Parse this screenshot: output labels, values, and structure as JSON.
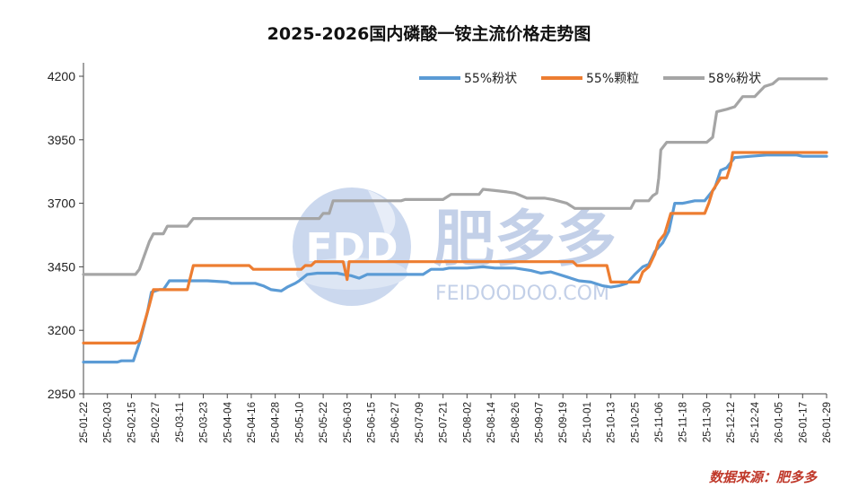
{
  "chart_data": {
    "type": "line",
    "title": "2025-2026国内磷酸一铵主流价格走势图",
    "ylim": [
      2950,
      4200
    ],
    "yticks": [
      2950,
      3200,
      3450,
      3700,
      3950,
      4200
    ],
    "xticks": [
      "25-01-22",
      "25-02-03",
      "25-02-15",
      "25-02-27",
      "25-03-11",
      "25-03-23",
      "25-04-04",
      "25-04-16",
      "25-04-28",
      "25-05-10",
      "25-05-22",
      "25-06-03",
      "25-06-15",
      "25-06-27",
      "25-07-09",
      "25-07-21",
      "25-08-02",
      "25-08-14",
      "25-08-26",
      "25-09-07",
      "25-09-19",
      "25-10-01",
      "25-10-13",
      "25-10-25",
      "25-11-06",
      "25-11-18",
      "25-11-30",
      "25-12-12",
      "25-12-24",
      "26-01-05",
      "26-01-17",
      "26-01-29"
    ],
    "grid": false,
    "legend_position": "top-right",
    "series": [
      {
        "name": "55%粉状",
        "color": "#5b9bd5",
        "points": [
          [
            "25-01-22",
            3075
          ],
          [
            "25-02-08",
            3075
          ],
          [
            "25-02-10",
            3080
          ],
          [
            "25-02-16",
            3080
          ],
          [
            "25-02-19",
            3150
          ],
          [
            "25-02-23",
            3270
          ],
          [
            "25-02-25",
            3350
          ],
          [
            "25-03-01",
            3360
          ],
          [
            "25-03-03",
            3360
          ],
          [
            "25-03-06",
            3395
          ],
          [
            "25-03-20",
            3395
          ],
          [
            "25-03-25",
            3395
          ],
          [
            "25-04-04",
            3390
          ],
          [
            "25-04-06",
            3385
          ],
          [
            "25-04-18",
            3385
          ],
          [
            "25-04-22",
            3375
          ],
          [
            "25-04-26",
            3360
          ],
          [
            "25-05-01",
            3355
          ],
          [
            "25-05-04",
            3370
          ],
          [
            "25-05-08",
            3385
          ],
          [
            "25-05-10",
            3395
          ],
          [
            "25-05-14",
            3420
          ],
          [
            "25-05-19",
            3425
          ],
          [
            "25-05-29",
            3425
          ],
          [
            "25-06-01",
            3420
          ],
          [
            "25-06-05",
            3415
          ],
          [
            "25-06-09",
            3405
          ],
          [
            "25-06-13",
            3420
          ],
          [
            "25-06-16",
            3420
          ],
          [
            "25-06-28",
            3420
          ],
          [
            "25-07-11",
            3420
          ],
          [
            "25-07-15",
            3440
          ],
          [
            "25-07-21",
            3440
          ],
          [
            "25-07-24",
            3445
          ],
          [
            "25-08-02",
            3445
          ],
          [
            "25-08-10",
            3450
          ],
          [
            "25-08-16",
            3445
          ],
          [
            "25-08-26",
            3445
          ],
          [
            "25-09-03",
            3435
          ],
          [
            "25-09-08",
            3425
          ],
          [
            "25-09-13",
            3430
          ],
          [
            "25-09-17",
            3420
          ],
          [
            "25-09-21",
            3410
          ],
          [
            "25-09-27",
            3395
          ],
          [
            "25-10-03",
            3390
          ],
          [
            "25-10-09",
            3375
          ],
          [
            "25-10-13",
            3370
          ],
          [
            "25-10-17",
            3375
          ],
          [
            "25-10-21",
            3385
          ],
          [
            "25-10-25",
            3420
          ],
          [
            "25-10-29",
            3450
          ],
          [
            "25-11-01",
            3460
          ],
          [
            "25-11-04",
            3510
          ],
          [
            "25-11-08",
            3545
          ],
          [
            "25-11-11",
            3590
          ],
          [
            "25-11-14",
            3700
          ],
          [
            "25-11-18",
            3700
          ],
          [
            "25-11-24",
            3710
          ],
          [
            "25-11-29",
            3710
          ],
          [
            "25-12-01",
            3730
          ],
          [
            "25-12-04",
            3760
          ],
          [
            "25-12-07",
            3830
          ],
          [
            "25-12-10",
            3840
          ],
          [
            "25-12-14",
            3880
          ],
          [
            "25-12-22",
            3885
          ],
          [
            "25-12-30",
            3890
          ],
          [
            "26-01-14",
            3890
          ],
          [
            "26-01-17",
            3885
          ],
          [
            "26-01-20",
            3885
          ],
          [
            "26-01-29",
            3885
          ]
        ]
      },
      {
        "name": "55%颗粒",
        "color": "#ed7d31",
        "points": [
          [
            "25-01-22",
            3150
          ],
          [
            "25-02-17",
            3150
          ],
          [
            "25-02-19",
            3160
          ],
          [
            "25-02-24",
            3300
          ],
          [
            "25-02-26",
            3360
          ],
          [
            "25-03-06",
            3360
          ],
          [
            "25-03-13",
            3360
          ],
          [
            "25-03-15",
            3360
          ],
          [
            "25-03-18",
            3455
          ],
          [
            "25-04-15",
            3455
          ],
          [
            "25-04-17",
            3440
          ],
          [
            "25-05-11",
            3440
          ],
          [
            "25-05-13",
            3455
          ],
          [
            "25-05-16",
            3455
          ],
          [
            "25-05-18",
            3470
          ],
          [
            "25-06-01",
            3470
          ],
          [
            "25-06-03",
            3400
          ],
          [
            "25-06-04",
            3470
          ],
          [
            "25-09-24",
            3470
          ],
          [
            "25-09-26",
            3455
          ],
          [
            "25-10-11",
            3455
          ],
          [
            "25-10-13",
            3390
          ],
          [
            "25-10-27",
            3390
          ],
          [
            "25-10-29",
            3430
          ],
          [
            "25-11-01",
            3450
          ],
          [
            "25-11-04",
            3500
          ],
          [
            "25-11-06",
            3550
          ],
          [
            "25-11-09",
            3580
          ],
          [
            "25-11-12",
            3660
          ],
          [
            "25-11-24",
            3660
          ],
          [
            "25-11-29",
            3660
          ],
          [
            "25-12-01",
            3700
          ],
          [
            "25-12-03",
            3750
          ],
          [
            "25-12-07",
            3800
          ],
          [
            "25-12-10",
            3800
          ],
          [
            "25-12-12",
            3850
          ],
          [
            "25-12-13",
            3900
          ],
          [
            "26-01-29",
            3900
          ]
        ]
      },
      {
        "name": "58%粉状",
        "color": "#a5a5a5",
        "points": [
          [
            "25-01-22",
            3420
          ],
          [
            "25-02-17",
            3420
          ],
          [
            "25-02-19",
            3440
          ],
          [
            "25-02-24",
            3550
          ],
          [
            "25-02-26",
            3580
          ],
          [
            "25-03-03",
            3580
          ],
          [
            "25-03-05",
            3610
          ],
          [
            "25-03-12",
            3610
          ],
          [
            "25-03-15",
            3610
          ],
          [
            "25-03-18",
            3640
          ],
          [
            "25-05-20",
            3640
          ],
          [
            "25-05-22",
            3660
          ],
          [
            "25-05-25",
            3660
          ],
          [
            "25-05-27",
            3710
          ],
          [
            "25-06-30",
            3710
          ],
          [
            "25-07-02",
            3715
          ],
          [
            "25-07-21",
            3715
          ],
          [
            "25-07-25",
            3735
          ],
          [
            "25-08-08",
            3735
          ],
          [
            "25-08-10",
            3755
          ],
          [
            "25-08-16",
            3750
          ],
          [
            "25-08-22",
            3745
          ],
          [
            "25-08-26",
            3740
          ],
          [
            "25-09-01",
            3720
          ],
          [
            "25-09-10",
            3720
          ],
          [
            "25-09-14",
            3715
          ],
          [
            "25-09-21",
            3700
          ],
          [
            "25-09-25",
            3680
          ],
          [
            "25-10-23",
            3680
          ],
          [
            "25-10-25",
            3710
          ],
          [
            "25-11-01",
            3710
          ],
          [
            "25-11-03",
            3730
          ],
          [
            "25-11-05",
            3740
          ],
          [
            "25-11-06",
            3800
          ],
          [
            "25-11-07",
            3910
          ],
          [
            "25-11-10",
            3940
          ],
          [
            "25-11-30",
            3940
          ],
          [
            "25-12-03",
            3960
          ],
          [
            "25-12-05",
            4060
          ],
          [
            "25-12-10",
            4070
          ],
          [
            "25-12-14",
            4080
          ],
          [
            "25-12-18",
            4120
          ],
          [
            "25-12-24",
            4120
          ],
          [
            "25-12-29",
            4160
          ],
          [
            "26-01-02",
            4170
          ],
          [
            "26-01-05",
            4190
          ],
          [
            "26-01-29",
            4190
          ]
        ]
      }
    ]
  },
  "watermark": {
    "logo_text": "FDD",
    "brand_cn": "肥多多",
    "brand_url": "FEIDOODOO.COM"
  },
  "source_label": "数据来源：肥多多"
}
